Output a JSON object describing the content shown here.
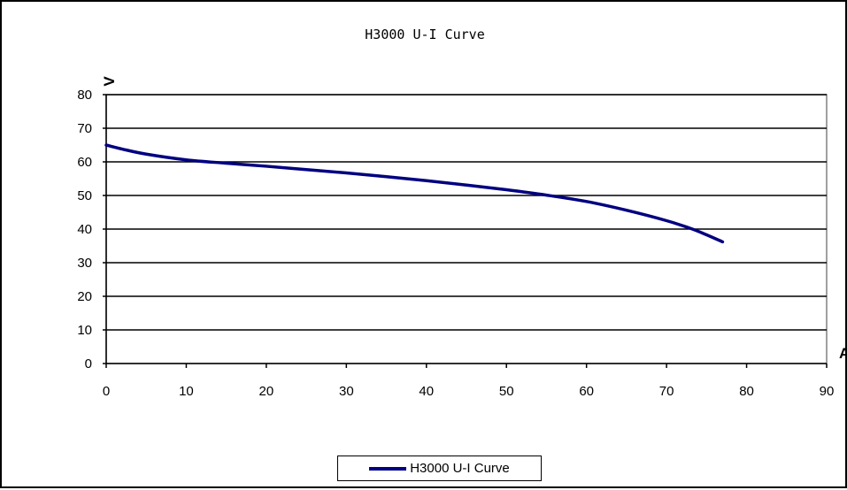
{
  "chart_data": {
    "type": "line",
    "title": "H3000 U-I Curve",
    "xlabel": "A",
    "ylabel": "V",
    "xlim": [
      0,
      90
    ],
    "ylim": [
      0,
      80
    ],
    "xticks": [
      0,
      10,
      20,
      30,
      40,
      50,
      60,
      70,
      80,
      90
    ],
    "yticks": [
      0,
      10,
      20,
      30,
      40,
      50,
      60,
      70,
      80
    ],
    "grid": "horizontal",
    "legend": "bottom",
    "series": [
      {
        "name": "H3000 U-I Curve",
        "color": "#000080",
        "x": [
          0,
          2,
          5,
          10,
          15,
          20,
          25,
          30,
          35,
          40,
          45,
          50,
          55,
          60,
          65,
          70,
          73,
          75,
          77
        ],
        "y": [
          65,
          63.8,
          62.3,
          60.6,
          59.6,
          58.7,
          57.7,
          56.7,
          55.6,
          54.4,
          53.1,
          51.7,
          50.1,
          48.2,
          45.6,
          42.5,
          40.2,
          38.3,
          36.2
        ]
      }
    ]
  }
}
